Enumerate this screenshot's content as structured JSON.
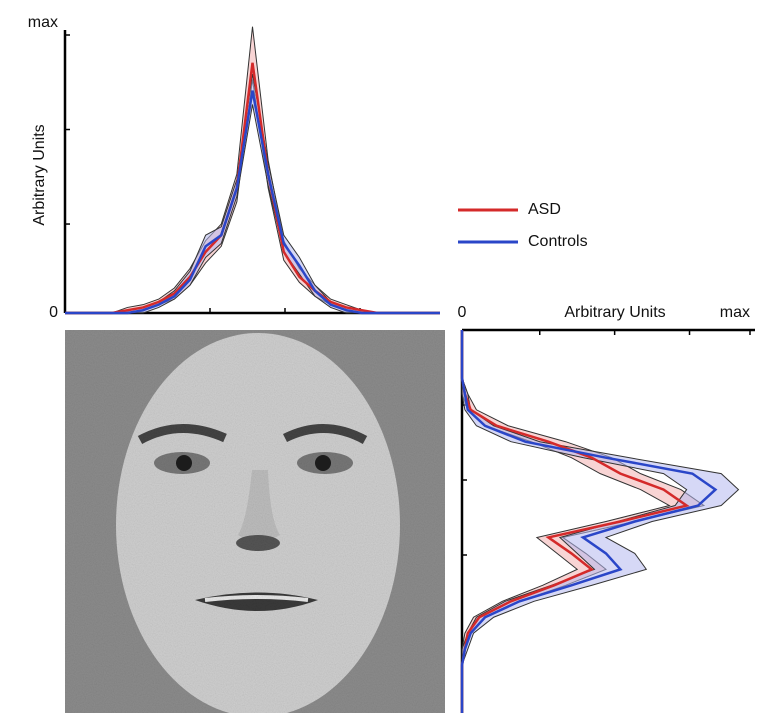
{
  "chart_data": [
    {
      "type": "line",
      "ylabel": "Arbitrary Units",
      "categories": [
        null,
        null,
        null,
        null,
        null,
        null,
        null,
        null,
        null,
        null,
        null,
        null,
        null,
        null,
        null,
        null,
        null,
        null,
        null,
        null,
        null,
        null,
        null,
        null,
        null
      ],
      "ylim": [
        0,
        1
      ],
      "yticks": [
        0,
        {
          "value": 1,
          "label": "max"
        }
      ],
      "minor_yticks": [
        0.32,
        0.66
      ],
      "series": [
        {
          "name": "ASD",
          "color": "#d42a2a",
          "band_color": "#f2b0b0",
          "values": [
            0,
            0,
            0,
            0,
            0.01,
            0.02,
            0.04,
            0.07,
            0.13,
            0.22,
            0.28,
            0.45,
            0.9,
            0.5,
            0.22,
            0.13,
            0.08,
            0.04,
            0.02,
            0.01,
            0,
            0,
            0,
            0,
            0
          ],
          "lower": [
            0,
            0,
            0,
            0,
            0,
            0.01,
            0.03,
            0.05,
            0.1,
            0.18,
            0.24,
            0.4,
            0.84,
            0.45,
            0.19,
            0.11,
            0.06,
            0.03,
            0.01,
            0,
            0,
            0,
            0,
            0,
            0
          ],
          "upper": [
            0,
            0,
            0,
            0,
            0.02,
            0.03,
            0.05,
            0.09,
            0.16,
            0.26,
            0.32,
            0.5,
            1.03,
            0.55,
            0.26,
            0.16,
            0.1,
            0.05,
            0.03,
            0.01,
            0,
            0,
            0,
            0,
            0
          ]
        },
        {
          "name": "Controls",
          "color": "#2a46c8",
          "band_color": "#b4b8ee",
          "values": [
            0,
            0,
            0,
            0,
            0,
            0.01,
            0.03,
            0.06,
            0.12,
            0.24,
            0.28,
            0.45,
            0.8,
            0.5,
            0.25,
            0.17,
            0.08,
            0.03,
            0.01,
            0,
            0,
            0,
            0,
            0,
            0
          ],
          "lower": [
            0,
            0,
            0,
            0,
            0,
            0,
            0.02,
            0.05,
            0.1,
            0.2,
            0.25,
            0.42,
            0.75,
            0.46,
            0.22,
            0.14,
            0.06,
            0.02,
            0,
            0,
            0,
            0,
            0,
            0,
            0
          ],
          "upper": [
            0,
            0,
            0,
            0,
            0.01,
            0.02,
            0.04,
            0.08,
            0.15,
            0.28,
            0.31,
            0.48,
            0.86,
            0.54,
            0.28,
            0.2,
            0.1,
            0.04,
            0.02,
            0.01,
            0,
            0,
            0,
            0,
            0
          ]
        }
      ]
    },
    {
      "type": "line",
      "orientation": "horizontal",
      "xlabel": "Arbitrary Units",
      "categories": [
        null,
        null,
        null,
        null,
        null,
        null,
        null,
        null,
        null,
        null,
        null,
        null,
        null,
        null,
        null,
        null,
        null,
        null,
        null,
        null,
        null,
        null,
        null,
        null,
        null
      ],
      "xlim": [
        0,
        1
      ],
      "xticks": [
        0,
        {
          "value": 1,
          "label": "max"
        }
      ],
      "minor_xticks": [
        0.27,
        0.53,
        0.79
      ],
      "series": [
        {
          "color": "#d42a2a",
          "band_color": "#f2b0b0",
          "values": [
            0,
            0,
            0,
            0,
            0.01,
            0.03,
            0.12,
            0.3,
            0.45,
            0.55,
            0.7,
            0.78,
            0.55,
            0.3,
            0.38,
            0.45,
            0.32,
            0.17,
            0.06,
            0.02,
            0.01,
            0,
            0,
            0,
            0
          ],
          "lower": [
            0,
            0,
            0,
            0,
            0,
            0.02,
            0.08,
            0.24,
            0.38,
            0.48,
            0.62,
            0.72,
            0.5,
            0.26,
            0.33,
            0.4,
            0.28,
            0.14,
            0.04,
            0.01,
            0,
            0,
            0,
            0,
            0
          ],
          "upper": [
            0,
            0,
            0,
            0,
            0.02,
            0.05,
            0.16,
            0.36,
            0.52,
            0.62,
            0.76,
            0.84,
            0.6,
            0.35,
            0.43,
            0.5,
            0.36,
            0.2,
            0.08,
            0.03,
            0.01,
            0,
            0,
            0,
            0
          ]
        },
        {
          "color": "#2a46c8",
          "band_color": "#b4b8ee",
          "values": [
            0,
            0,
            0,
            0,
            0.01,
            0.02,
            0.08,
            0.22,
            0.5,
            0.8,
            0.88,
            0.82,
            0.6,
            0.42,
            0.5,
            0.55,
            0.38,
            0.2,
            0.08,
            0.03,
            0.01,
            0,
            0,
            0,
            0
          ],
          "lower": [
            0,
            0,
            0,
            0,
            0,
            0.01,
            0.05,
            0.17,
            0.42,
            0.7,
            0.78,
            0.74,
            0.54,
            0.34,
            0.4,
            0.46,
            0.31,
            0.15,
            0.05,
            0.02,
            0,
            0,
            0,
            0,
            0
          ],
          "upper": [
            0,
            0,
            0,
            0,
            0.02,
            0.03,
            0.11,
            0.27,
            0.58,
            0.9,
            0.96,
            0.9,
            0.66,
            0.5,
            0.6,
            0.64,
            0.45,
            0.25,
            0.11,
            0.04,
            0.02,
            0,
            0,
            0,
            0
          ]
        }
      ]
    }
  ]
}
